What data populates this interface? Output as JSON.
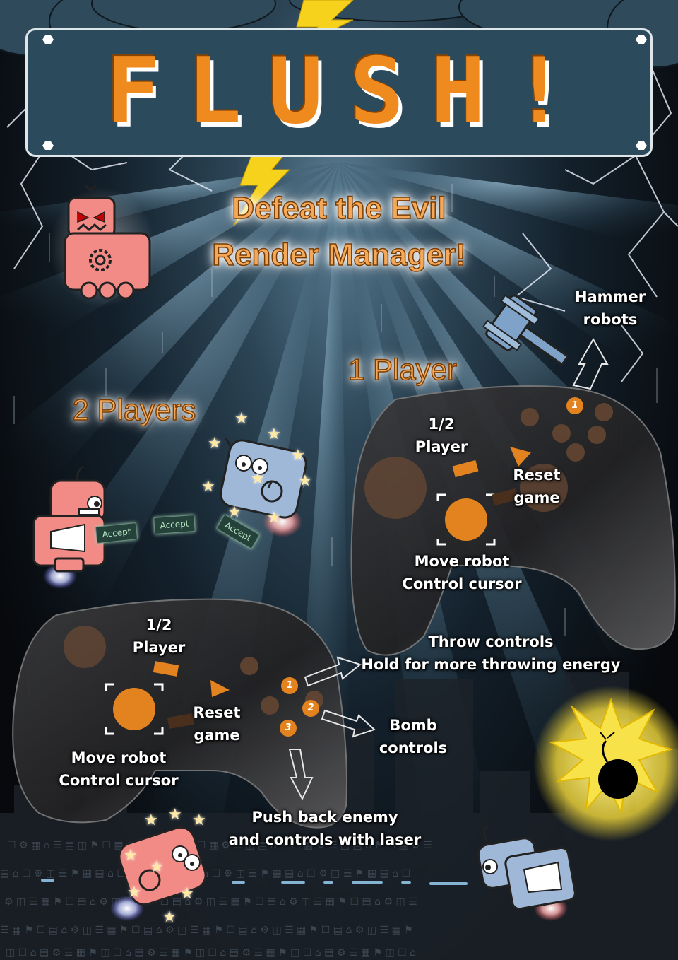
{
  "title": "FLUSH!",
  "tagline": {
    "line1": "Defeat the Evil",
    "line2": "Render Manager!"
  },
  "modes": {
    "one_player": "1 Player",
    "two_players": "2 Players"
  },
  "one_player_controller": {
    "player_select": {
      "line1": "1/2",
      "line2": "Player"
    },
    "reset": {
      "line1": "Reset",
      "line2": "game"
    },
    "move": {
      "line1": "Move robot",
      "line2": "Control cursor"
    },
    "hammer": {
      "line1": "Hammer",
      "line2": "robots"
    },
    "button_number": "1"
  },
  "two_player_controller": {
    "player_select": {
      "line1": "1/2",
      "line2": "Player"
    },
    "reset": {
      "line1": "Reset",
      "line2": "game"
    },
    "move": {
      "line1": "Move robot",
      "line2": "Control cursor"
    },
    "throw": {
      "line1": "Throw controls",
      "line2": "Hold for more throwing energy"
    },
    "bomb": {
      "line1": "Bomb",
      "line2": "controls"
    },
    "push": {
      "line1": "Push back enemy",
      "line2": "and controls with laser"
    },
    "button_numbers": [
      "1",
      "2",
      "3"
    ]
  },
  "accept_labels": [
    "Accept",
    "Accept",
    "Accept"
  ],
  "colors": {
    "orange": "#ef8a1e",
    "panel": "#2b4a5c",
    "pink_robot": "#f28b86",
    "blue_robot": "#9fb8d8",
    "bomb_flash": "#f7e24a"
  },
  "icons": [
    "lightning-icon",
    "hammer-icon",
    "bomb-icon",
    "gear-icon",
    "star-icon",
    "arrow-icon"
  ]
}
